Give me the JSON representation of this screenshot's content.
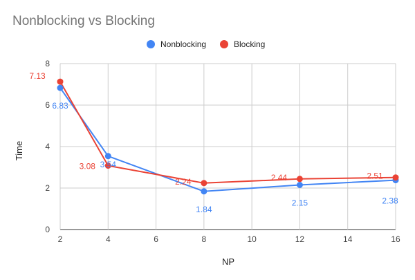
{
  "chart_data": {
    "type": "line",
    "title": "Nonblocking vs Blocking",
    "xlabel": "NP",
    "ylabel": "Time",
    "x": [
      2,
      4,
      8,
      12,
      16
    ],
    "xlim": [
      2,
      16
    ],
    "xticks": [
      2,
      4,
      6,
      8,
      10,
      12,
      14,
      16
    ],
    "ylim": [
      0,
      8
    ],
    "yticks": [
      0,
      2,
      4,
      6,
      8
    ],
    "grid": true,
    "legend_position": "top",
    "series": [
      {
        "name": "Nonblocking",
        "color": "#4285f4",
        "values": [
          6.83,
          3.54,
          1.84,
          2.15,
          2.38
        ],
        "labels": [
          "6.83",
          "3.54",
          "1.84",
          "2.15",
          "2.38"
        ]
      },
      {
        "name": "Blocking",
        "color": "#ea4335",
        "values": [
          7.13,
          3.08,
          2.24,
          2.44,
          2.51
        ],
        "labels": [
          "7.13",
          "3.08",
          "2.24",
          "2.44",
          "2.51"
        ]
      }
    ]
  }
}
